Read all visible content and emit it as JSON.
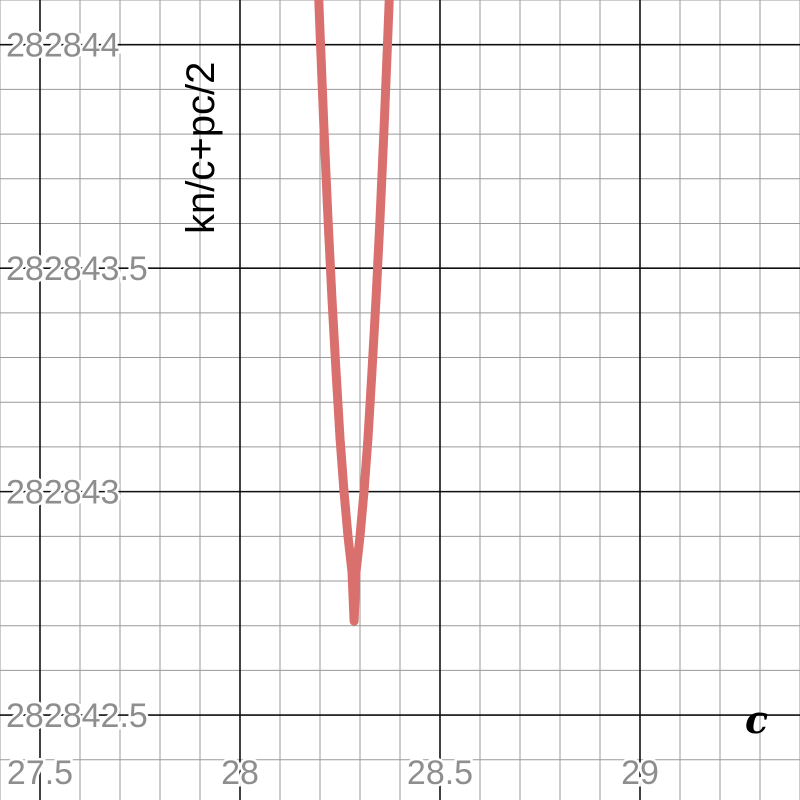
{
  "chart_data": {
    "type": "line",
    "xlabel": "c",
    "ylabel": "kn/c+pc/2",
    "xlim": [
      27.4,
      29.4
    ],
    "ylim": [
      282842.31,
      282844.1
    ],
    "x_ticks": [
      {
        "value": 27.5,
        "label": "27.5"
      },
      {
        "value": 28,
        "label": "28"
      },
      {
        "value": 28.5,
        "label": "28.5"
      },
      {
        "value": 29,
        "label": "29"
      }
    ],
    "y_ticks": [
      {
        "value": 282844,
        "label": "282844"
      },
      {
        "value": 282843.5,
        "label": "282843.5"
      },
      {
        "value": 282843,
        "label": "282843"
      },
      {
        "value": 282842.5,
        "label": "282842.5"
      }
    ],
    "minor_step_x": 0.1,
    "minor_step_y": 0.1,
    "grid": true,
    "series": [
      {
        "color": "#d9706e",
        "x": [
          28.19,
          28.2,
          28.21,
          28.22,
          28.23,
          28.24,
          28.25,
          28.26,
          28.27,
          28.28,
          28.2853,
          28.29,
          28.3,
          28.31,
          28.32,
          28.33,
          28.34,
          28.35,
          28.36,
          28.37,
          28.38
        ],
        "y": [
          282844.26,
          282844.03,
          282843.81,
          282843.61,
          282843.43,
          282843.27,
          282843.12,
          282843.0,
          282842.9,
          282842.82,
          282842.71,
          282842.82,
          282842.9,
          282843.0,
          282843.12,
          282843.27,
          282843.43,
          282843.61,
          282843.81,
          282844.03,
          282844.26
        ]
      }
    ]
  }
}
